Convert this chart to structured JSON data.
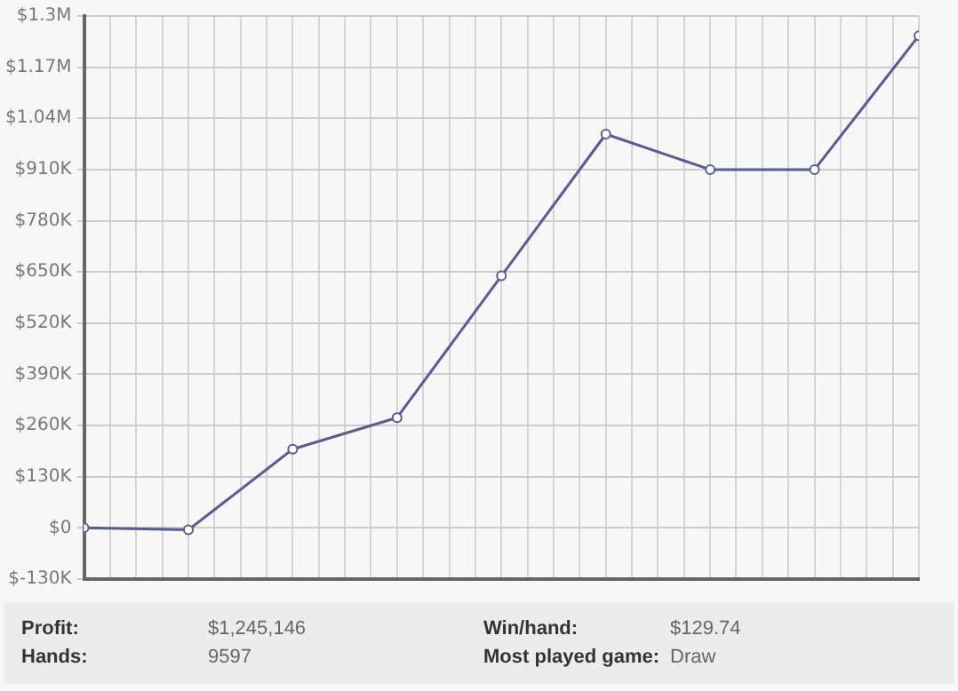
{
  "chart_data": {
    "type": "line",
    "categories": [
      null,
      null,
      null,
      null,
      null,
      null,
      null,
      null,
      null
    ],
    "series": [
      {
        "color": "#5c5a8e",
        "values": [
          0,
          -5000,
          200000,
          280000,
          640000,
          1000000,
          910000,
          910000,
          1250000
        ]
      }
    ],
    "ylim": [
      -130000,
      1300000
    ],
    "yticks": [
      {
        "value": -130000,
        "label": "$-130K"
      },
      {
        "value": 0,
        "label": "$0"
      },
      {
        "value": 130000,
        "label": "$130K"
      },
      {
        "value": 260000,
        "label": "$260K"
      },
      {
        "value": 390000,
        "label": "$390K"
      },
      {
        "value": 520000,
        "label": "$520K"
      },
      {
        "value": 650000,
        "label": "$650K"
      },
      {
        "value": 780000,
        "label": "$780K"
      },
      {
        "value": 910000,
        "label": "$910K"
      },
      {
        "value": 1040000,
        "label": "$1.04M"
      },
      {
        "value": 1170000,
        "label": "$1.17M"
      },
      {
        "value": 1300000,
        "label": "$1.3M"
      }
    ],
    "grid": true,
    "legend": false,
    "marker": "circle",
    "line_style": "solid",
    "tick_labels": "y",
    "annotations": [
      "Profit:",
      "$1,245,146",
      "Win/hand:",
      "$129.74",
      "Hands:",
      "9597",
      "Most played game:",
      "Draw"
    ]
  }
}
